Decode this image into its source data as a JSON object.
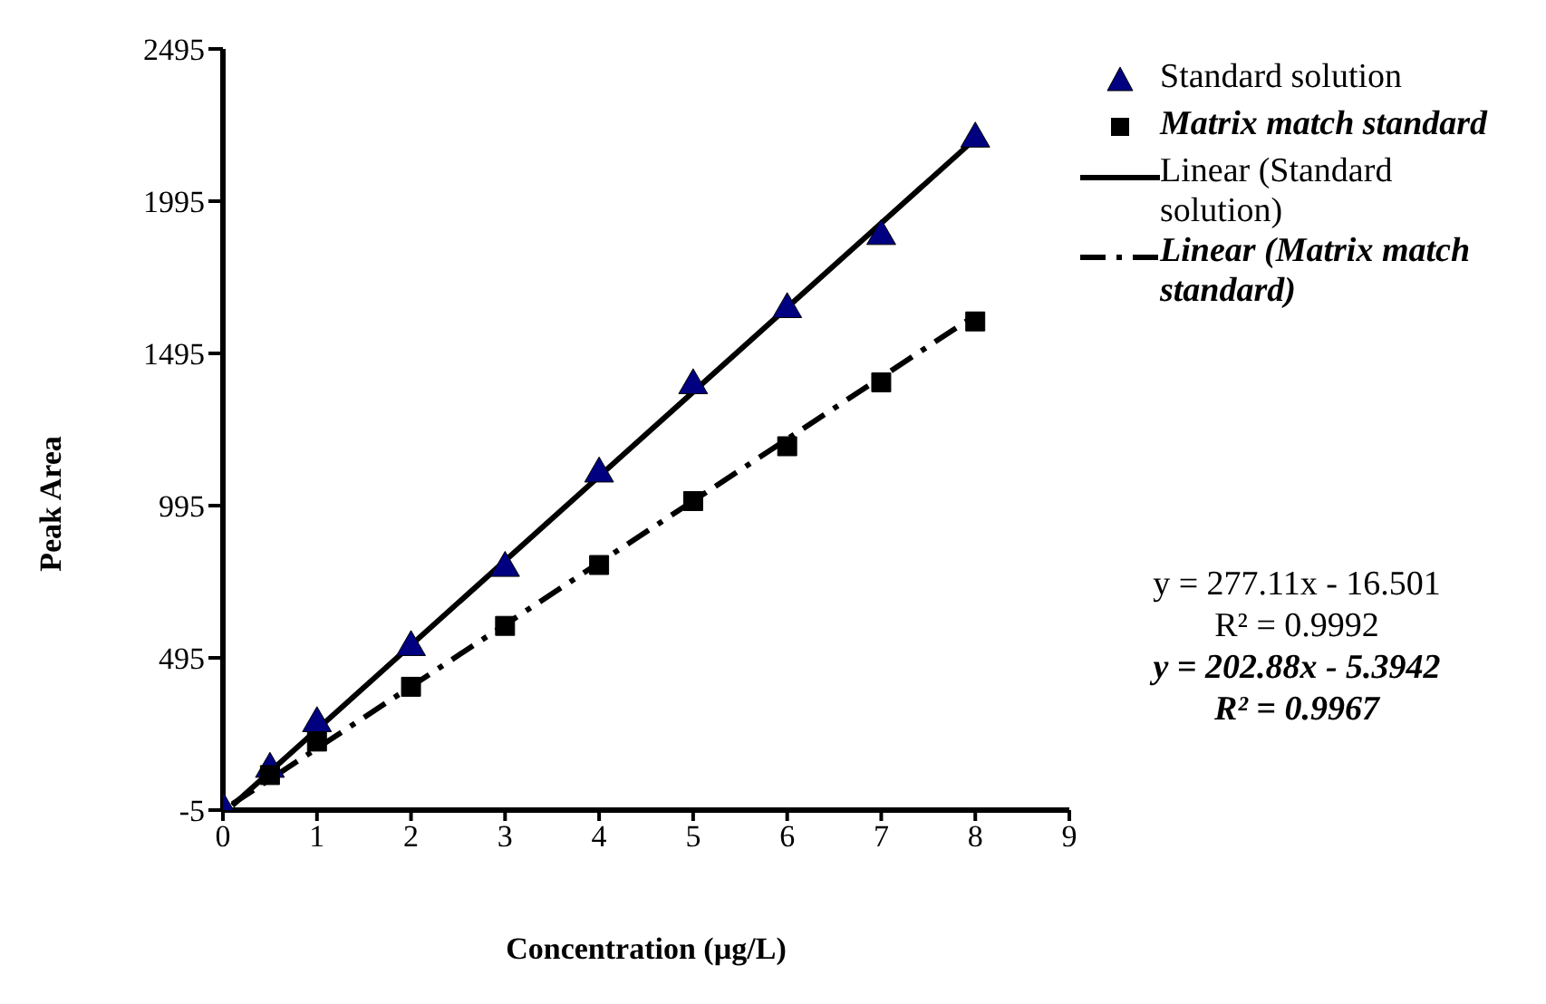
{
  "chart_data": {
    "type": "scatter",
    "xlabel": "Concentration (µg/L)",
    "ylabel": "Peak Area",
    "xlim": [
      0,
      9
    ],
    "xticks": [
      0,
      1,
      2,
      3,
      4,
      5,
      6,
      7,
      8,
      9
    ],
    "ylim": [
      -5,
      2495
    ],
    "yticks": [
      -5,
      495,
      995,
      1495,
      1995,
      2495
    ],
    "grid": false,
    "legend": "right",
    "series": [
      {
        "name": "Standard solution",
        "marker": "triangle",
        "color": "#000080",
        "x": [
          0,
          0.5,
          1,
          2,
          3,
          4,
          5,
          6,
          7,
          8
        ],
        "values": [
          0,
          130,
          280,
          530,
          790,
          1100,
          1390,
          1640,
          1880,
          2200
        ]
      },
      {
        "name": "Matrix match standard",
        "marker": "square",
        "color": "#000000",
        "x": [
          0.5,
          1,
          2,
          3,
          4,
          5,
          6,
          7,
          8
        ],
        "values": [
          110,
          220,
          400,
          600,
          800,
          1010,
          1190,
          1400,
          1600
        ]
      },
      {
        "name": "Linear (Standard solution)",
        "type": "line",
        "marker": "none",
        "line_style": "solid",
        "color": "#000000",
        "x": [
          0.1,
          8
        ],
        "values": [
          10,
          2200
        ]
      },
      {
        "name": "Linear (Matrix match standard)",
        "type": "line",
        "marker": "none",
        "line_style": "dashed",
        "color": "#000000",
        "x": [
          0.1,
          8
        ],
        "values": [
          15,
          1620
        ]
      }
    ],
    "annotations": [
      "y = 277.11x - 16.501",
      "R² = 0.9992",
      "y = 202.88x - 5.3942",
      "R² = 0.9967"
    ]
  }
}
